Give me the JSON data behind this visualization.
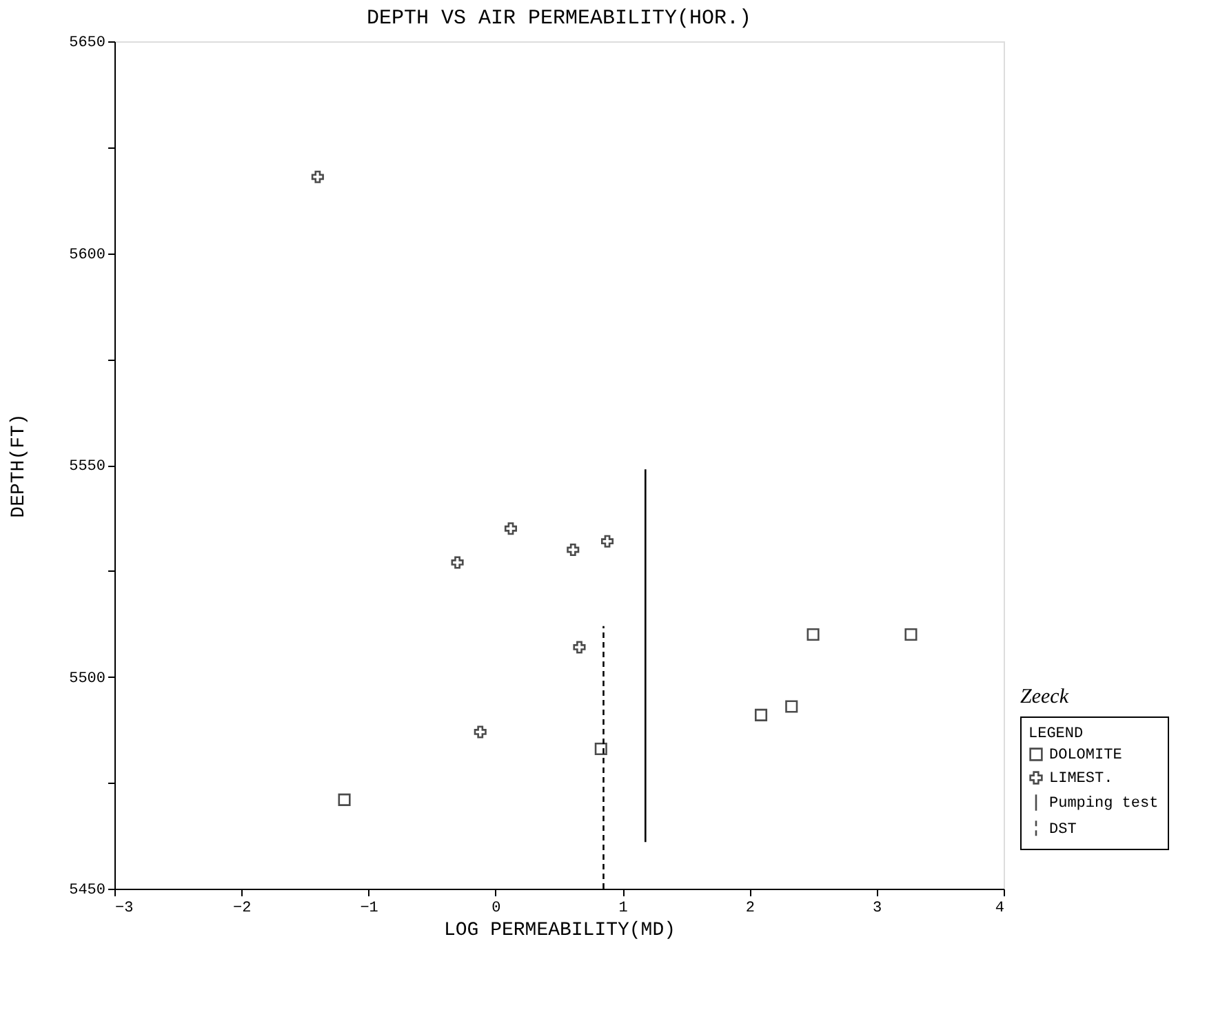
{
  "chart_data": {
    "type": "scatter",
    "title": "DEPTH VS AIR PERMEABILITY(HOR.)",
    "xlabel": "LOG PERMEABILITY(MD)",
    "ylabel": "DEPTH(FT)",
    "legend_title": "LEGEND",
    "legend": "bottom right",
    "grid": false,
    "xlim": [
      -3,
      4
    ],
    "xticks": [
      -3,
      -2,
      -1,
      0,
      1,
      2,
      3,
      4
    ],
    "ylim": [
      5450,
      5650
    ],
    "yticks": [
      5450,
      {
        "value": 5475,
        "label": null
      },
      5500,
      {
        "value": 5525,
        "label": null
      },
      5550,
      {
        "value": 5575,
        "label": null
      },
      5600,
      {
        "value": 5625,
        "label": null
      },
      5650
    ],
    "annotations": [
      "Zeeck"
    ],
    "series": [
      {
        "name": "DOLOMITE",
        "color": "#000000",
        "marker": "square",
        "x": [
          -1.19,
          0.83,
          2.09,
          2.33,
          2.5,
          3.27
        ],
        "values": [
          5471,
          5483,
          5491,
          5493,
          5510,
          5510
        ]
      },
      {
        "name": "LIMEST.",
        "color": "#000000",
        "marker": "cross",
        "x": [
          -1.4,
          -0.3,
          0.12,
          0.61,
          0.88,
          0.66,
          -0.12
        ],
        "values": [
          5618,
          5527,
          5535,
          5530,
          5532,
          5507,
          5487
        ]
      },
      {
        "name": "Pumping test",
        "type": "line",
        "color": "#000000",
        "line_style": "solid",
        "x": [
          1.18,
          1.18
        ],
        "values": [
          5461,
          5549
        ]
      },
      {
        "name": "DST",
        "type": "line",
        "color": "#000000",
        "line_style": "dashed",
        "x": [
          0.85,
          0.85
        ],
        "values": [
          5450,
          5512
        ]
      }
    ]
  }
}
